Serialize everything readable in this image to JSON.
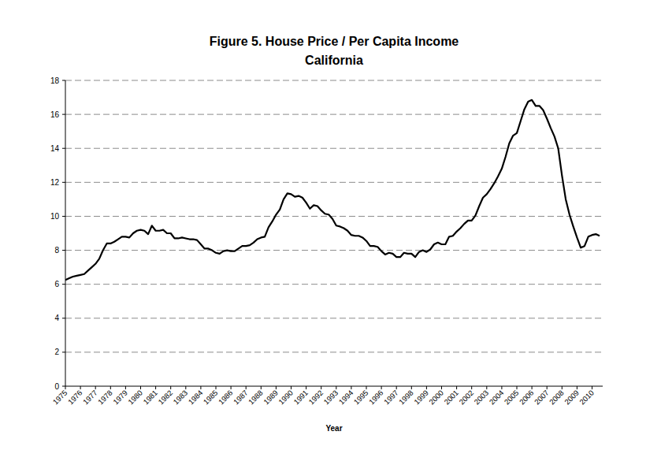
{
  "chart_data": {
    "type": "line",
    "title": "Figure 5. House Price / Per Capita Income",
    "subtitle": "California",
    "x_label": "Year",
    "categories": [
      "1975",
      null,
      null,
      null,
      "1976",
      null,
      null,
      null,
      "1977",
      null,
      null,
      null,
      "1978",
      null,
      null,
      null,
      "1979",
      null,
      null,
      null,
      "1980",
      null,
      null,
      null,
      "1981",
      null,
      null,
      null,
      "1982",
      null,
      null,
      null,
      "1983",
      null,
      null,
      null,
      "1984",
      null,
      null,
      null,
      "1985",
      null,
      null,
      null,
      "1986",
      null,
      null,
      null,
      "1987",
      null,
      null,
      null,
      "1988",
      null,
      null,
      null,
      "1989",
      null,
      null,
      null,
      "1990",
      null,
      null,
      null,
      "1991",
      null,
      null,
      null,
      "1992",
      null,
      null,
      null,
      "1993",
      null,
      null,
      null,
      "1994",
      null,
      null,
      null,
      "1995",
      null,
      null,
      null,
      "1996",
      null,
      null,
      null,
      "1997",
      null,
      null,
      null,
      "1998",
      null,
      null,
      null,
      "1999",
      null,
      null,
      null,
      "2000",
      null,
      null,
      null,
      "2001",
      null,
      null,
      null,
      "2002",
      null,
      null,
      null,
      "2003",
      null,
      null,
      null,
      "2004",
      null,
      null,
      null,
      "2005",
      null,
      null,
      null,
      "2006",
      null,
      null,
      null,
      "2007",
      null,
      null,
      null,
      "2008",
      null,
      null,
      null,
      "2009",
      null,
      null,
      null,
      "2010",
      null,
      null
    ],
    "values": [
      6.25,
      6.35,
      6.45,
      6.5,
      6.55,
      6.6,
      6.8,
      7.0,
      7.2,
      7.5,
      8.0,
      8.4,
      8.4,
      8.5,
      8.65,
      8.8,
      8.8,
      8.75,
      9.0,
      9.15,
      9.2,
      9.15,
      8.95,
      9.45,
      9.15,
      9.15,
      9.2,
      9.0,
      9.0,
      8.7,
      8.7,
      8.75,
      8.7,
      8.65,
      8.65,
      8.6,
      8.35,
      8.1,
      8.1,
      8.0,
      7.85,
      7.8,
      7.95,
      8.0,
      7.95,
      7.95,
      8.1,
      8.25,
      8.25,
      8.3,
      8.45,
      8.65,
      8.75,
      8.8,
      9.35,
      9.7,
      10.1,
      10.4,
      11.0,
      11.35,
      11.3,
      11.15,
      11.2,
      11.1,
      10.8,
      10.45,
      10.65,
      10.6,
      10.35,
      10.15,
      10.1,
      9.85,
      9.45,
      9.4,
      9.3,
      9.15,
      8.9,
      8.85,
      8.85,
      8.75,
      8.55,
      8.25,
      8.25,
      8.2,
      7.95,
      7.75,
      7.85,
      7.8,
      7.6,
      7.6,
      7.85,
      7.8,
      7.8,
      7.6,
      7.9,
      8.0,
      7.9,
      8.05,
      8.35,
      8.45,
      8.35,
      8.35,
      8.8,
      8.85,
      9.1,
      9.3,
      9.55,
      9.75,
      9.75,
      10.05,
      10.6,
      11.1,
      11.3,
      11.6,
      11.95,
      12.35,
      12.8,
      13.5,
      14.3,
      14.75,
      14.9,
      15.6,
      16.3,
      16.75,
      16.85,
      16.5,
      16.5,
      16.25,
      15.75,
      15.2,
      14.7,
      14.0,
      12.4,
      11.0,
      10.1,
      9.4,
      8.75,
      8.15,
      8.25,
      8.8,
      8.9,
      8.95,
      8.85
    ],
    "color": "#000000",
    "ylim": [
      0,
      18
    ],
    "yticks": [
      0,
      2,
      4,
      6,
      8,
      10,
      12,
      14,
      16,
      18
    ],
    "grid": true
  }
}
